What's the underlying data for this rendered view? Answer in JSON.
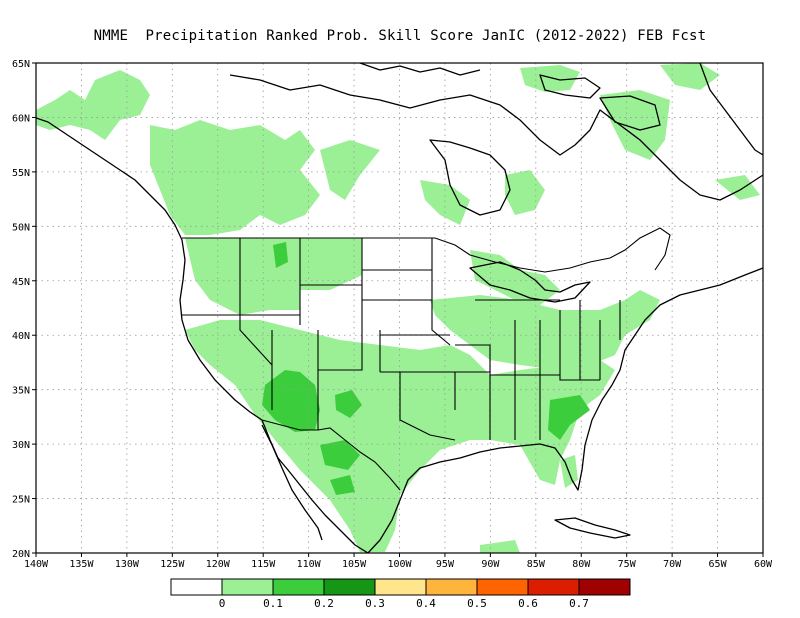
{
  "title": "NMME  Precipitation Ranked Prob. Skill Score JanIC (2012-2022) FEB Fcst",
  "map": {
    "lon_range": [
      -140,
      -60
    ],
    "lat_range": [
      20,
      65
    ],
    "lon_ticks": [
      "140W",
      "135W",
      "130W",
      "125W",
      "120W",
      "115W",
      "110W",
      "105W",
      "100W",
      "95W",
      "90W",
      "85W",
      "80W",
      "75W",
      "70W",
      "65W",
      "60W"
    ],
    "lat_ticks": [
      "65N",
      "60N",
      "55N",
      "50N",
      "45N",
      "40N",
      "35N",
      "30N",
      "25N",
      "20N"
    ],
    "grid": "dotted"
  },
  "legend": {
    "colors": [
      "#ffffff",
      "#9bf096",
      "#3ccd3c",
      "#159615",
      "#ffe68c",
      "#ffb43c",
      "#ff6400",
      "#dc1e00",
      "#a00000"
    ],
    "labels": [
      "0",
      "0.1",
      "0.2",
      "0.3",
      "0.4",
      "0.5",
      "0.6",
      "0.7"
    ]
  }
}
